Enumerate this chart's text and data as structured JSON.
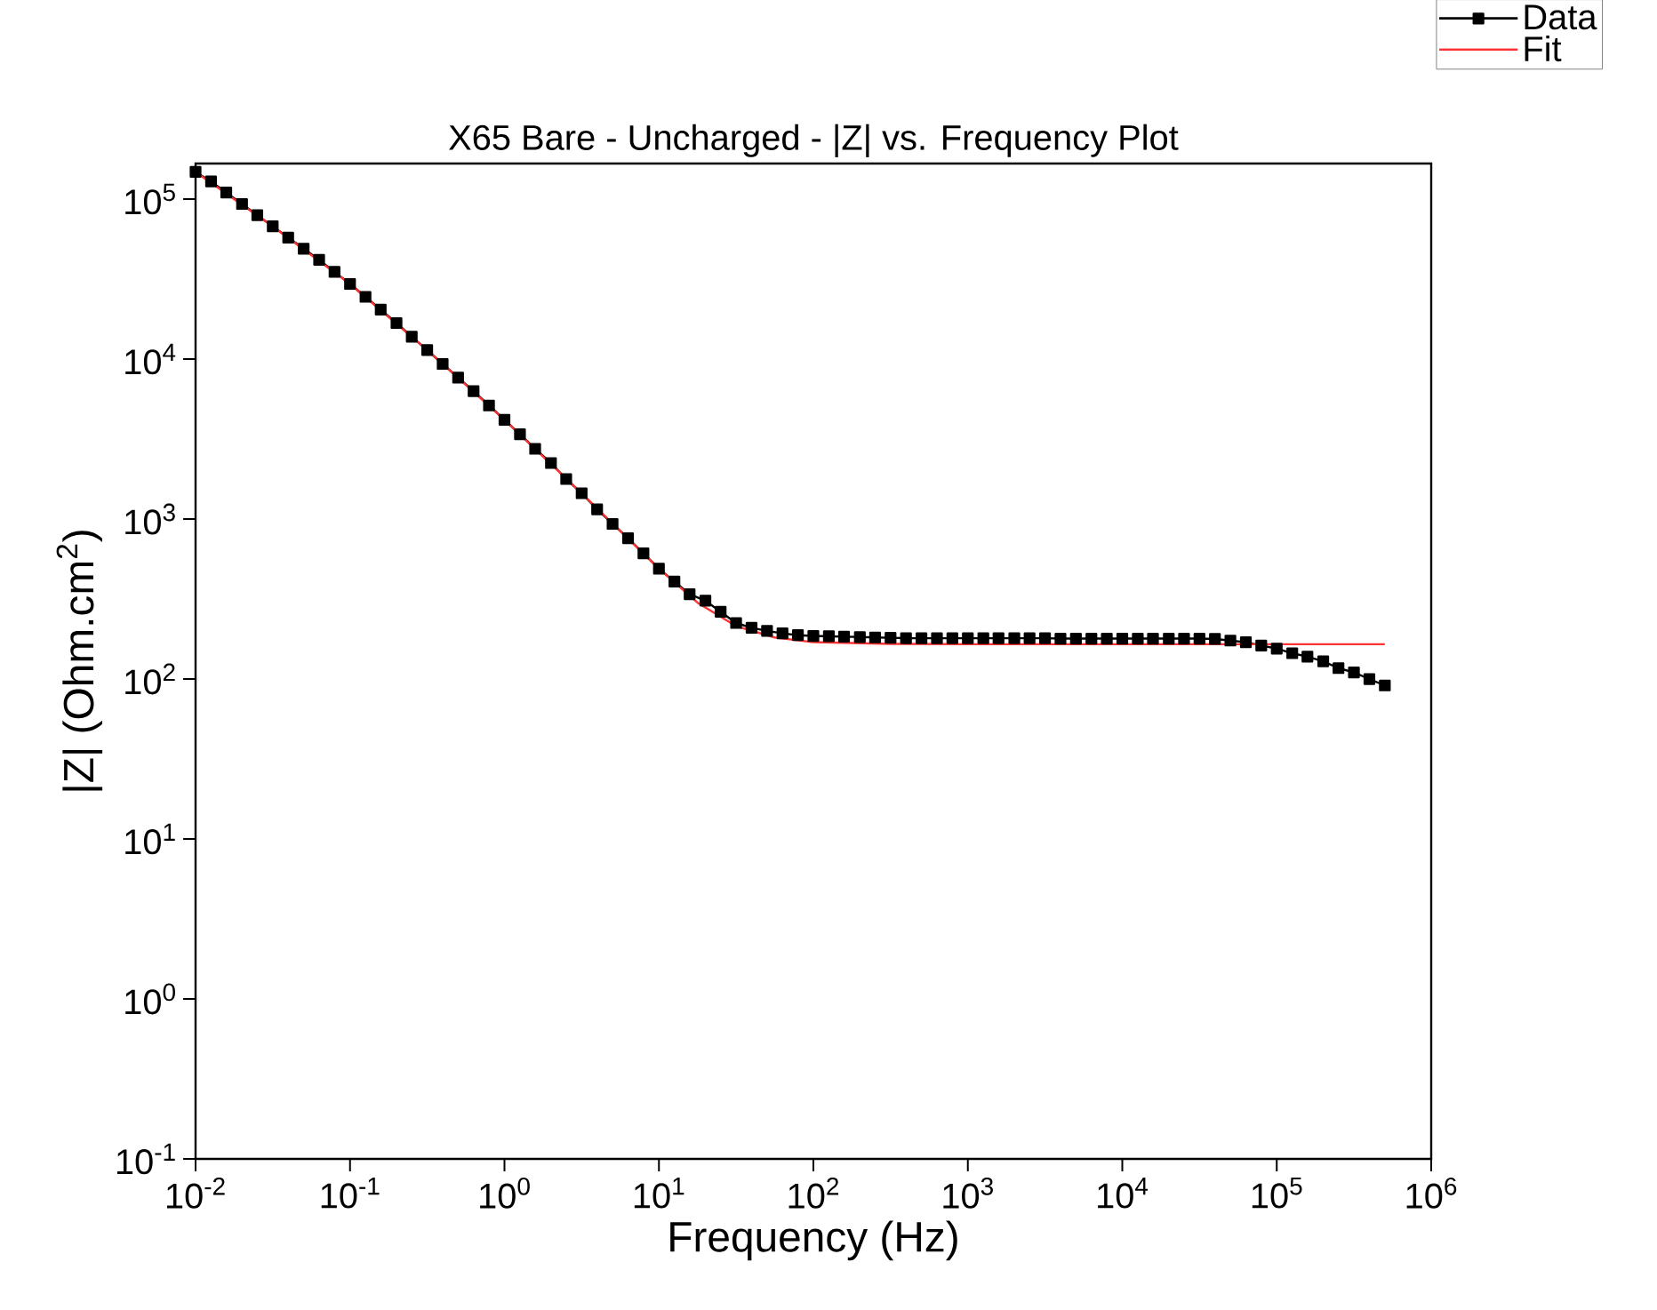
{
  "chart_data": {
    "type": "line",
    "title": "X65 Bare - Uncharged - |Z| vs. Frequency Plot",
    "xlabel": "Frequency (Hz)",
    "ylabel": "|Z| (Ohm.cm$^{2}$)",
    "log": "xy",
    "legend": "top right",
    "xlim": [
      0.01,
      1000000
    ],
    "ylim": [
      0.1,
      167000
    ],
    "xticks": [
      {
        "value": 0.01,
        "label": "10$^{-2}$"
      },
      {
        "value": 0.1,
        "label": "10$^{-1}$"
      },
      {
        "value": 1,
        "label": "10$^{0}$"
      },
      {
        "value": 10,
        "label": "10$^{1}$"
      },
      {
        "value": 100,
        "label": "10$^{2}$"
      },
      {
        "value": 1000,
        "label": "10$^{3}$"
      },
      {
        "value": 10000,
        "label": "10$^{4}$"
      },
      {
        "value": 100000,
        "label": "10$^{5}$"
      },
      {
        "value": 1000000,
        "label": "10$^{6}$"
      }
    ],
    "yticks": [
      {
        "value": 0.1,
        "label": "10$^{-1}$"
      },
      {
        "value": 1,
        "label": "10$^{0}$"
      },
      {
        "value": 10,
        "label": "10$^{1}$"
      },
      {
        "value": 100,
        "label": "10$^{2}$"
      },
      {
        "value": 1000,
        "label": "10$^{3}$"
      },
      {
        "value": 10000,
        "label": "10$^{4}$"
      },
      {
        "value": 100000,
        "label": "10$^{5}$"
      }
    ],
    "series": [
      {
        "name": "Data",
        "color": "#000000",
        "marker": "square",
        "line_style": "solid",
        "x": [
          0.01,
          0.0126,
          0.0158,
          0.02,
          0.0251,
          0.0316,
          0.0398,
          0.0501,
          0.0631,
          0.0794,
          0.1,
          0.126,
          0.158,
          0.2,
          0.251,
          0.316,
          0.398,
          0.501,
          0.631,
          0.794,
          1,
          1.26,
          1.58,
          2,
          2.51,
          3.16,
          3.98,
          5.01,
          6.31,
          7.94,
          10,
          12.6,
          15.8,
          20,
          25.1,
          31.6,
          39.8,
          50.1,
          63.1,
          79.4,
          100,
          126,
          158,
          200,
          251,
          316,
          398,
          501,
          631,
          794,
          1000,
          1260,
          1580,
          2000,
          2510,
          3160,
          3980,
          5010,
          6310,
          7940,
          10000,
          12600,
          15800,
          20000,
          25100,
          31600,
          39800,
          50100,
          63100,
          79400,
          100000,
          126000,
          158000,
          200000,
          251000,
          316000,
          398000,
          501000
        ],
        "values": [
          148000,
          129000,
          110000,
          93300,
          79400,
          67600,
          57500,
          49000,
          41700,
          35100,
          29500,
          24500,
          20400,
          16800,
          13800,
          11400,
          9330,
          7670,
          6310,
          5130,
          4170,
          3390,
          2750,
          2240,
          1780,
          1450,
          1150,
          933,
          759,
          610,
          490,
          407,
          339,
          309,
          263,
          224,
          209,
          200,
          193,
          188,
          186,
          185,
          184,
          183,
          182,
          181,
          180,
          180,
          180,
          180,
          180,
          180,
          180,
          180,
          180,
          180,
          179,
          179,
          179,
          179,
          179,
          179,
          179,
          179,
          179,
          179,
          178,
          174,
          170,
          162,
          155,
          145,
          138,
          129,
          117,
          110,
          100,
          91.2
        ]
      },
      {
        "name": "Fit",
        "color": "#ff3333",
        "marker": "none",
        "line_style": "solid",
        "x": [
          0.01,
          0.0316,
          0.1,
          0.316,
          1,
          3.16,
          10,
          17.8,
          31.6,
          56.2,
          100,
          316,
          1000,
          10000,
          100000,
          501000
        ],
        "values": [
          148000,
          67600,
          29500,
          11400,
          4170,
          1450,
          490,
          300,
          214,
          182,
          170,
          166,
          165,
          165,
          165,
          165
        ]
      }
    ]
  }
}
